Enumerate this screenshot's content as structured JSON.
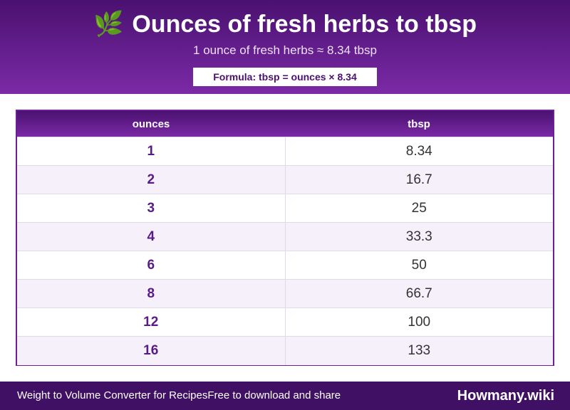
{
  "header": {
    "icon": "herb-leaf-icon",
    "icon_glyph": "🌿",
    "title": "Ounces of fresh herbs to tbsp",
    "subtitle": "1 ounce of fresh herbs ≈ 8.34 tbsp",
    "formula": "Formula: tbsp = ounces × 8.34"
  },
  "table": {
    "columns": [
      "ounces",
      "tbsp"
    ],
    "rows": [
      {
        "ounces": "1",
        "tbsp": "8.34"
      },
      {
        "ounces": "2",
        "tbsp": "16.7"
      },
      {
        "ounces": "3",
        "tbsp": "25"
      },
      {
        "ounces": "4",
        "tbsp": "33.3"
      },
      {
        "ounces": "6",
        "tbsp": "50"
      },
      {
        "ounces": "8",
        "tbsp": "66.7"
      },
      {
        "ounces": "12",
        "tbsp": "100"
      },
      {
        "ounces": "16",
        "tbsp": "133"
      }
    ]
  },
  "footer": {
    "left_text": "Weight to Volume Converter for RecipesFree to download and share",
    "brand": "Howmany.wiki"
  },
  "colors": {
    "accent": "#6b1f96",
    "header_dark": "#4a1170",
    "footer_bg": "#3f1064",
    "row_alt": "#f5f0fa"
  }
}
